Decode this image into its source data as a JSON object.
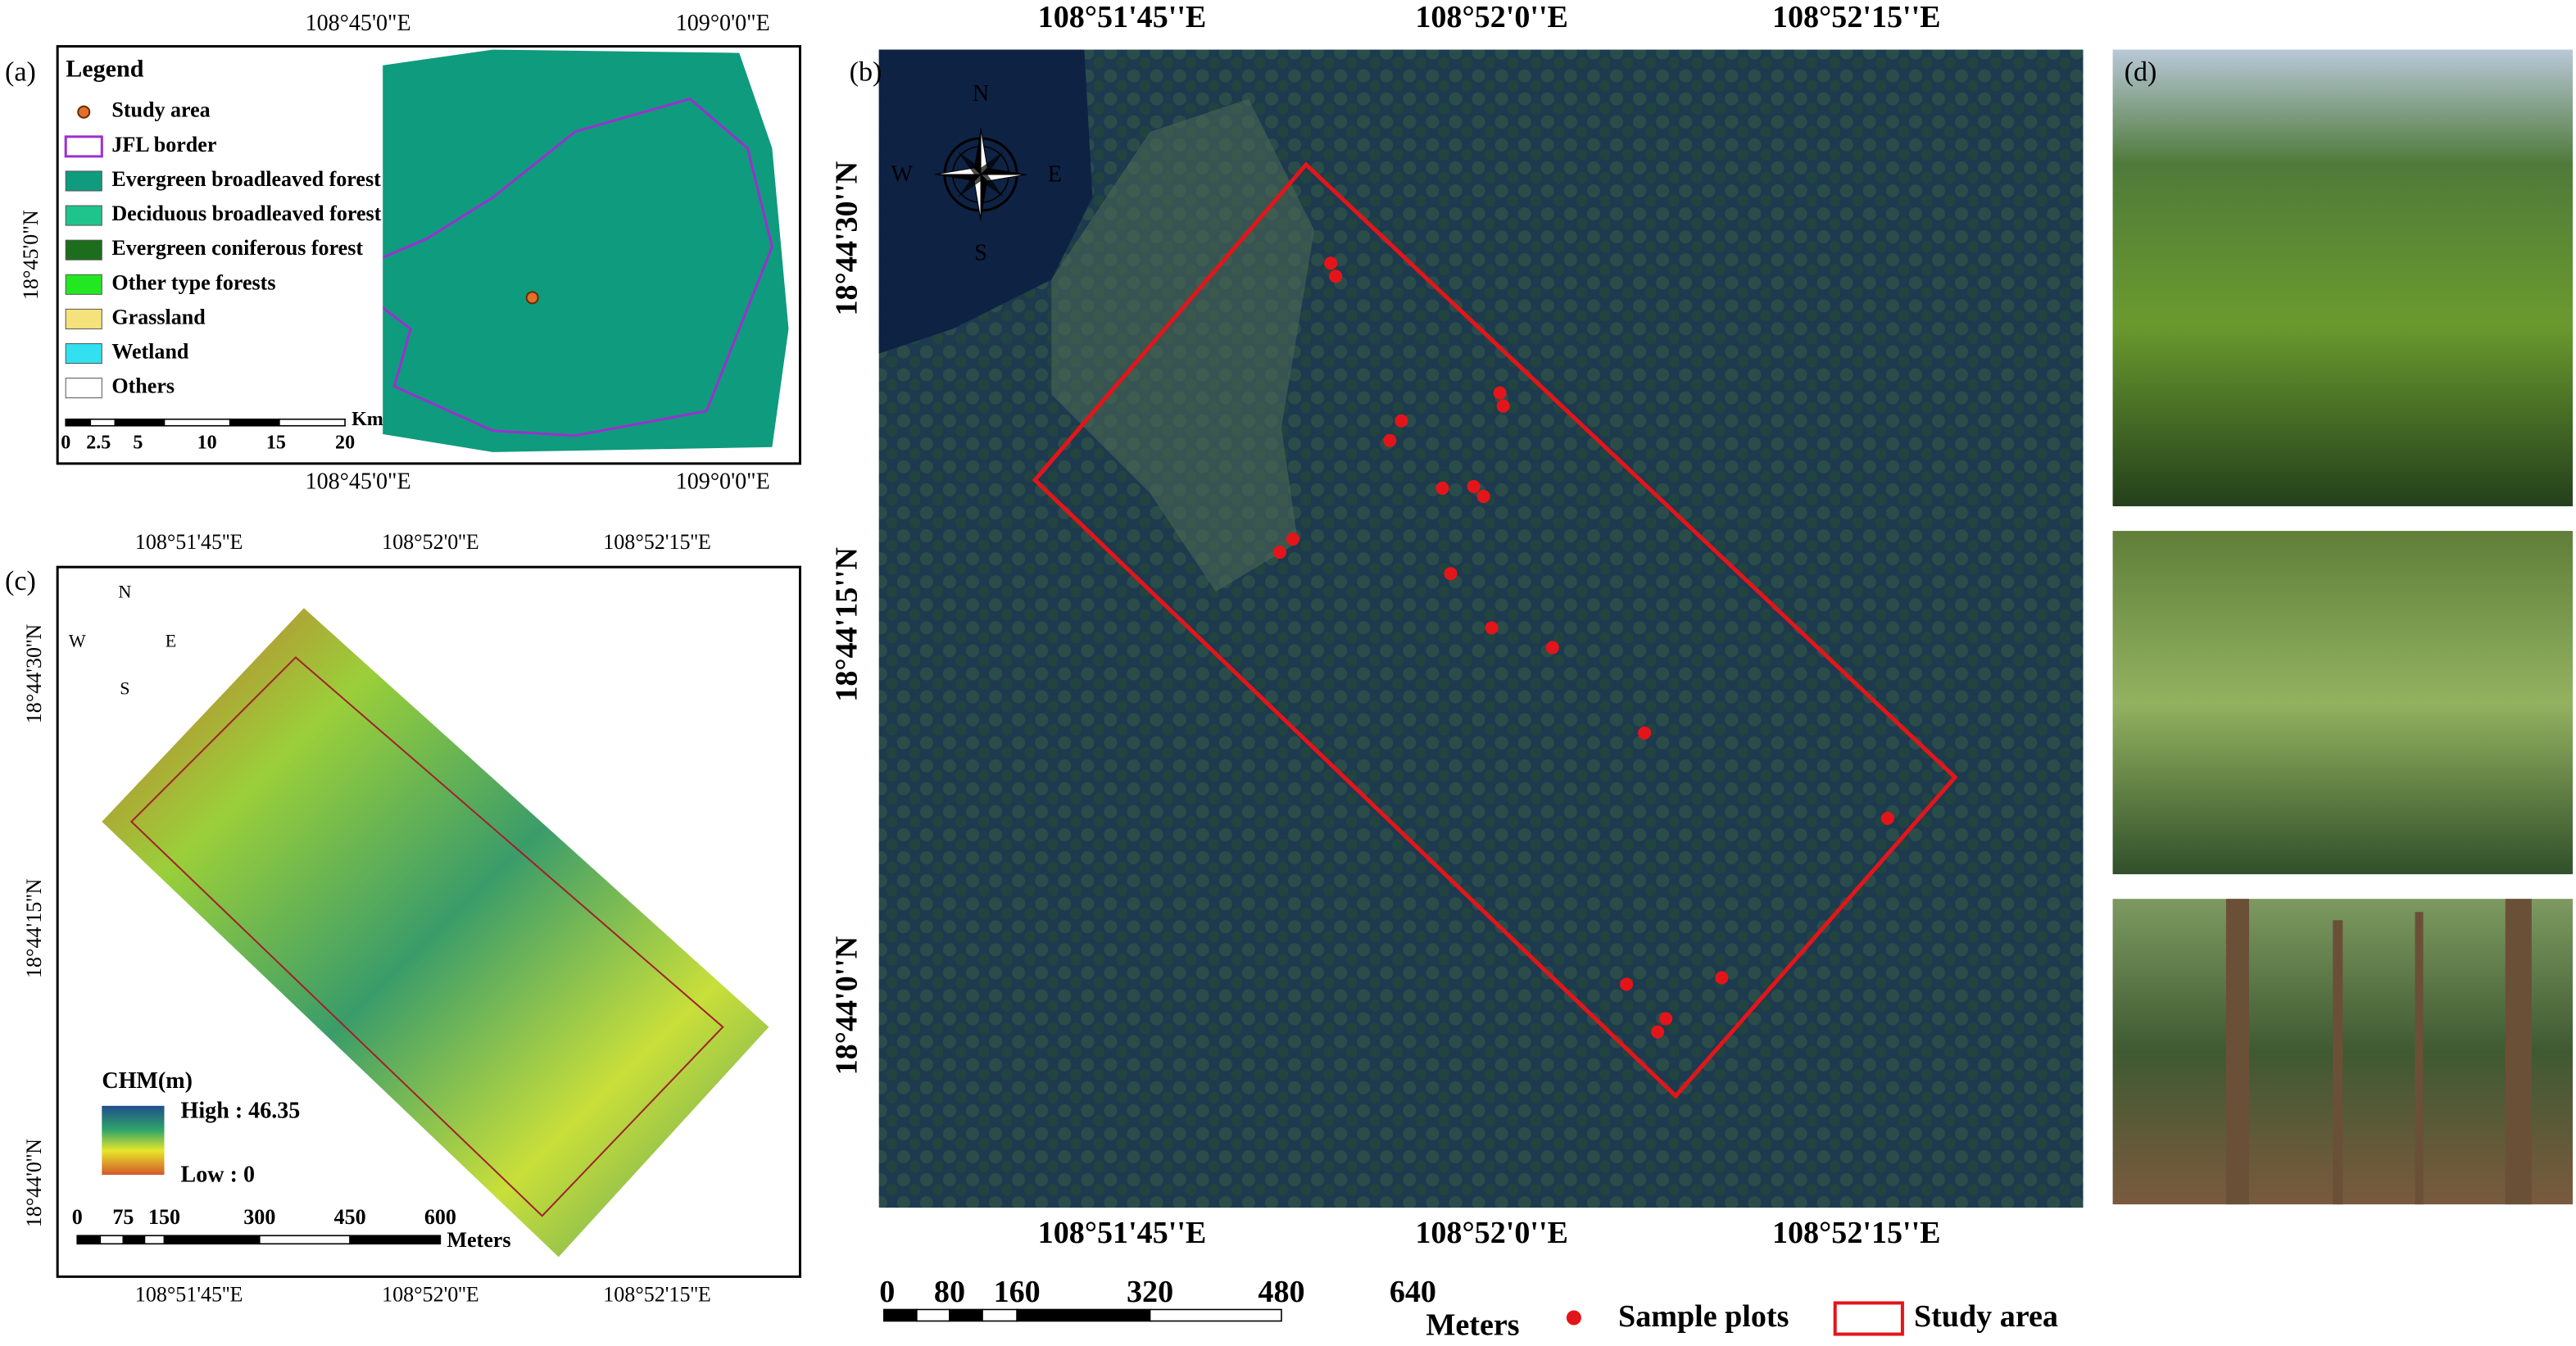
{
  "panels": {
    "a": {
      "label": "(a)",
      "legend_title": "Legend",
      "legend_items": [
        "Study area",
        "JFL border",
        "Evergreen broadleaved forest",
        "Deciduous broadleaved forest",
        "Evergreen coniferous forest",
        "Other type forests",
        "Grassland",
        "Wetland",
        "Others"
      ],
      "top_ticks": [
        "108°45'0\"E",
        "109°0'0\"E"
      ],
      "bottom_ticks": [
        "108°45'0\"E",
        "109°0'0\"E"
      ],
      "left_ticks": [
        "18°45'0\"N"
      ],
      "scale_bar": {
        "ticks": [
          "0",
          "2.5",
          "5",
          "10",
          "15",
          "20"
        ],
        "unit": "Km"
      }
    },
    "b": {
      "label": "(b)",
      "top_ticks": [
        "108°51'45''E",
        "108°52'0''E",
        "108°52'15''E"
      ],
      "bottom_ticks": [
        "108°51'45''E",
        "108°52'0''E",
        "108°52'15''E"
      ],
      "left_ticks": [
        "18°44'30''N",
        "18°44'15''N",
        "18°44'0''N"
      ],
      "compass": {
        "N": "N",
        "E": "E",
        "S": "S",
        "W": "W"
      },
      "scale_bar": {
        "ticks": [
          "0",
          "80",
          "160",
          "320",
          "480",
          "640"
        ],
        "unit": "Meters"
      },
      "legend": [
        "Sample plots",
        "Study area"
      ]
    },
    "c": {
      "label": "(c)",
      "top_ticks": [
        "108°51'45''E",
        "108°52'0''E",
        "108°52'15''E"
      ],
      "bottom_ticks": [
        "108°51'45''E",
        "108°52'0''E",
        "108°52'15''E"
      ],
      "left_ticks": [
        "18°44'30''N",
        "18°44'15''N",
        "18°44'0''N"
      ],
      "compass": {
        "N": "N",
        "E": "E",
        "S": "S",
        "W": "W"
      },
      "chm_title": "CHM(m)",
      "chm_high": "High : 46.35",
      "chm_low": "Low : 0",
      "scale_bar": {
        "ticks": [
          "0",
          "75",
          "150",
          "300",
          "450",
          "600"
        ],
        "unit": "Meters"
      }
    },
    "d": {
      "label": "(d)"
    }
  }
}
